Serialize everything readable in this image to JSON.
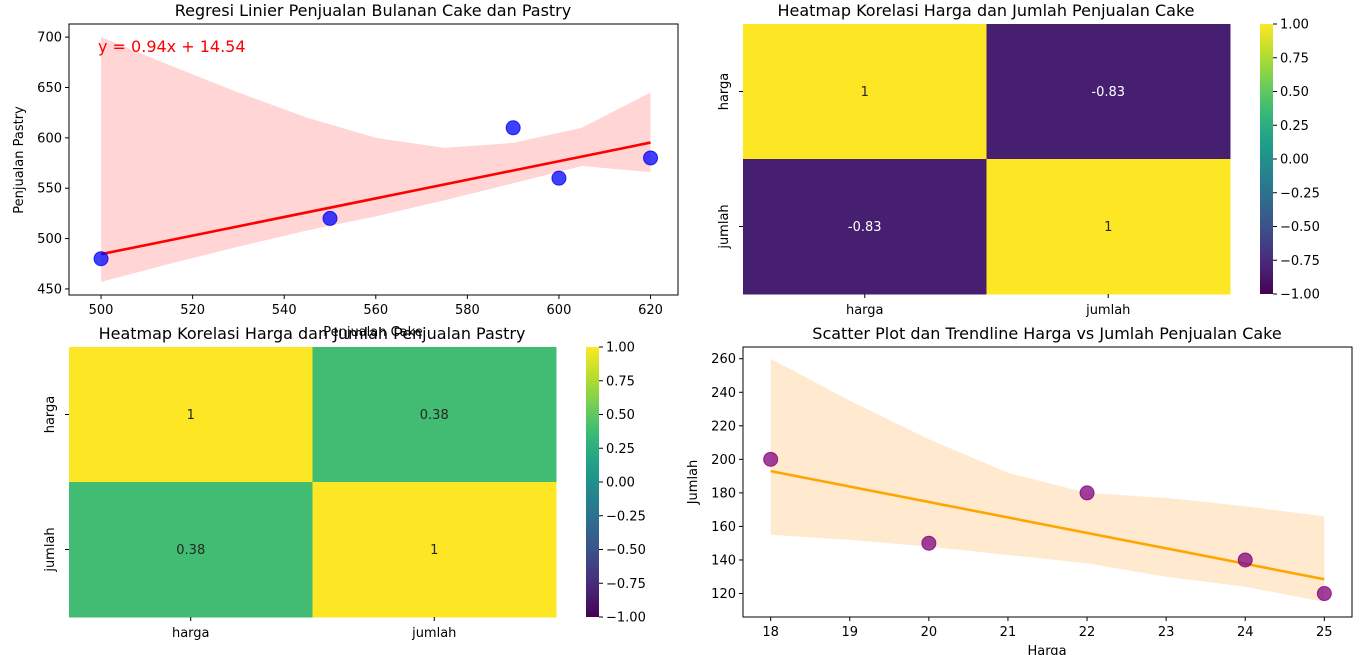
{
  "chart_data": [
    {
      "type": "scatter",
      "title": "Regresi Linier Penjualan Bulanan Cake dan Pastry",
      "xlabel": "Penjualan Cake",
      "ylabel": "Penjualan Pastry",
      "xlim": [
        493,
        626
      ],
      "ylim": [
        444,
        713
      ],
      "xticks": [
        500,
        520,
        540,
        560,
        580,
        600,
        620
      ],
      "yticks": [
        450,
        500,
        550,
        600,
        650,
        700
      ],
      "annotation": "y = 0.94x + 14.54",
      "series": [
        {
          "x": [
            500,
            550,
            590,
            600,
            620
          ],
          "y": [
            480,
            520,
            610,
            560,
            580
          ]
        }
      ],
      "trendline": {
        "x": [
          500,
          620
        ],
        "y": [
          484.5,
          595.3
        ]
      },
      "ci_band": {
        "x": [
          500,
          515,
          530,
          545,
          560,
          575,
          590,
          605,
          620
        ],
        "upper": [
          700,
          672,
          645,
          620,
          600,
          590,
          595,
          610,
          645
        ],
        "lower": [
          457,
          475,
          492,
          508,
          522,
          538,
          555,
          572,
          566
        ]
      },
      "colors": {
        "points": "#0000ff",
        "trendline": "#ff0000",
        "band": "#ffb3b3",
        "annotation": "#ff0000"
      },
      "grid": false
    },
    {
      "type": "heatmap",
      "title": "Heatmap Korelasi Harga dan Jumlah Penjualan Cake",
      "row_labels": [
        "harga",
        "jumlah"
      ],
      "col_labels": [
        "harga",
        "jumlah"
      ],
      "values": [
        [
          1,
          -0.83
        ],
        [
          -0.83,
          1
        ]
      ],
      "cell_labels": [
        [
          "1",
          "-0.83"
        ],
        [
          "-0.83",
          "1"
        ]
      ],
      "colorbar": {
        "min": -1,
        "max": 1,
        "ticks": [
          1.0,
          0.75,
          0.5,
          0.25,
          0.0,
          -0.25,
          -0.5,
          -0.75,
          -1.0
        ],
        "tick_labels": [
          "1.00",
          "0.75",
          "0.50",
          "0.25",
          "0.00",
          "−0.25",
          "−0.50",
          "−0.75",
          "−1.00"
        ]
      },
      "colormap": "viridis"
    },
    {
      "type": "heatmap",
      "title": "Heatmap Korelasi Harga dan Jumlah Penjualan Pastry",
      "row_labels": [
        "harga",
        "jumlah"
      ],
      "col_labels": [
        "harga",
        "jumlah"
      ],
      "values": [
        [
          1,
          0.38
        ],
        [
          0.38,
          1
        ]
      ],
      "cell_labels": [
        [
          "1",
          "0.38"
        ],
        [
          "0.38",
          "1"
        ]
      ],
      "colorbar": {
        "min": -1,
        "max": 1,
        "ticks": [
          1.0,
          0.75,
          0.5,
          0.25,
          0.0,
          -0.25,
          -0.5,
          -0.75,
          -1.0
        ],
        "tick_labels": [
          "1.00",
          "0.75",
          "0.50",
          "0.25",
          "0.00",
          "−0.25",
          "−0.50",
          "−0.75",
          "−1.00"
        ]
      },
      "colormap": "viridis"
    },
    {
      "type": "scatter",
      "title": "Scatter Plot dan Trendline Harga vs Jumlah Penjualan Cake",
      "xlabel": "Harga",
      "ylabel": "Jumlah",
      "xlim": [
        17.65,
        25.35
      ],
      "ylim": [
        106,
        267
      ],
      "xticks": [
        18,
        19,
        20,
        21,
        22,
        23,
        24,
        25
      ],
      "yticks": [
        120,
        140,
        160,
        180,
        200,
        220,
        240,
        260
      ],
      "series": [
        {
          "x": [
            18,
            20,
            22,
            24,
            25
          ],
          "y": [
            200,
            150,
            180,
            140,
            120
          ]
        }
      ],
      "trendline": {
        "x": [
          18,
          25
        ],
        "y": [
          193,
          128.5
        ]
      },
      "ci_band": {
        "x": [
          18,
          19,
          20,
          21,
          22,
          23,
          24,
          25
        ],
        "upper": [
          260,
          235,
          212,
          192,
          180,
          177,
          172,
          166
        ],
        "lower": [
          155,
          152,
          148,
          143,
          138,
          130,
          124,
          115
        ]
      },
      "colors": {
        "points": "#800080",
        "trendline": "#ffa500",
        "band": "#ffd9a8"
      },
      "grid": false
    }
  ]
}
